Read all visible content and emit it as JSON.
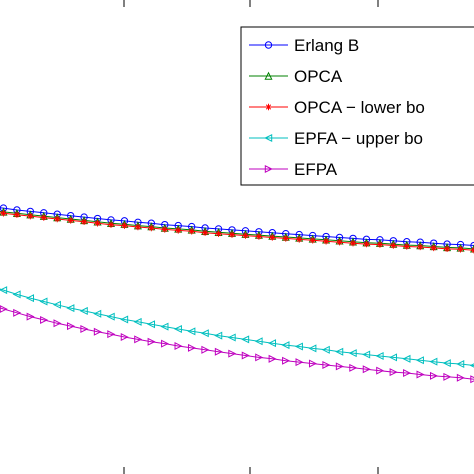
{
  "chart_data": {
    "type": "line",
    "title": "",
    "xlabel": "",
    "ylabel": "",
    "grid": false,
    "legend_position": "top-right",
    "x_visible_range": [
      0,
      1
    ],
    "ylim": [
      0,
      1
    ],
    "x": [
      0,
      0.0278,
      0.0556,
      0.0833,
      0.1111,
      0.1389,
      0.1667,
      0.1944,
      0.2222,
      0.25,
      0.2778,
      0.3056,
      0.3333,
      0.3611,
      0.3889,
      0.4167,
      0.4444,
      0.4722,
      0.5,
      0.5278,
      0.5556,
      0.5833,
      0.6111,
      0.6389,
      0.6667,
      0.6944,
      0.7222,
      0.75,
      0.7778,
      0.8056,
      0.8333,
      0.8611,
      0.8889,
      0.9167,
      0.9444,
      0.9722,
      1.0
    ],
    "series": [
      {
        "name": "Erlang B",
        "color": "#0000ff",
        "marker": "circle",
        "values": [
          0.564,
          0.561,
          0.557,
          0.554,
          0.551,
          0.548,
          0.545,
          0.542,
          0.539,
          0.536,
          0.534,
          0.531,
          0.529,
          0.526,
          0.524,
          0.522,
          0.519,
          0.517,
          0.515,
          0.513,
          0.511,
          0.509,
          0.507,
          0.505,
          0.503,
          0.501,
          0.499,
          0.497,
          0.495,
          0.494,
          0.492,
          0.49,
          0.489,
          0.487,
          0.485,
          0.484,
          0.482
        ]
      },
      {
        "name": "OPCA",
        "color": "#008000",
        "marker": "triangle-up",
        "values": [
          0.557,
          0.553,
          0.55,
          0.547,
          0.544,
          0.541,
          0.538,
          0.535,
          0.532,
          0.529,
          0.527,
          0.524,
          0.522,
          0.519,
          0.517,
          0.515,
          0.512,
          0.51,
          0.508,
          0.506,
          0.504,
          0.502,
          0.5,
          0.498,
          0.496,
          0.494,
          0.492,
          0.49,
          0.488,
          0.487,
          0.485,
          0.483,
          0.482,
          0.48,
          0.478,
          0.477,
          0.475
        ]
      },
      {
        "name": "OPCA − lower bo",
        "color": "#ff0000",
        "marker": "asterisk",
        "values": [
          0.554,
          0.55,
          0.547,
          0.544,
          0.541,
          0.538,
          0.535,
          0.532,
          0.529,
          0.526,
          0.524,
          0.521,
          0.519,
          0.516,
          0.514,
          0.512,
          0.509,
          0.507,
          0.505,
          0.503,
          0.501,
          0.499,
          0.497,
          0.495,
          0.493,
          0.491,
          0.489,
          0.487,
          0.485,
          0.484,
          0.482,
          0.48,
          0.479,
          0.477,
          0.475,
          0.474,
          0.472
        ]
      },
      {
        "name": "EPFA − upper bo",
        "color": "#00bfbf",
        "marker": "triangle-left",
        "values": [
          0.397,
          0.388,
          0.379,
          0.371,
          0.364,
          0.357,
          0.35,
          0.344,
          0.338,
          0.332,
          0.326,
          0.321,
          0.316,
          0.311,
          0.306,
          0.301,
          0.297,
          0.292,
          0.288,
          0.284,
          0.28,
          0.276,
          0.272,
          0.269,
          0.265,
          0.262,
          0.258,
          0.255,
          0.252,
          0.249,
          0.246,
          0.243,
          0.24,
          0.237,
          0.234,
          0.232,
          0.229
        ]
      },
      {
        "name": "EFPA",
        "color": "#bf00bf",
        "marker": "triangle-right",
        "values": [
          0.357,
          0.348,
          0.34,
          0.332,
          0.325,
          0.318,
          0.312,
          0.306,
          0.3,
          0.295,
          0.289,
          0.284,
          0.279,
          0.275,
          0.27,
          0.266,
          0.262,
          0.258,
          0.254,
          0.25,
          0.246,
          0.243,
          0.239,
          0.236,
          0.233,
          0.23,
          0.227,
          0.224,
          0.221,
          0.218,
          0.215,
          0.213,
          0.21,
          0.207,
          0.205,
          0.203,
          0.2
        ]
      }
    ]
  }
}
